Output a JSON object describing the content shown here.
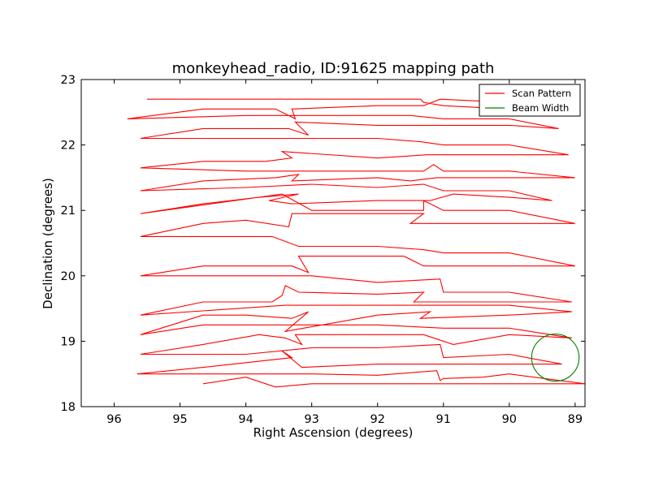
{
  "chart_data": {
    "type": "line",
    "title": "monkeyhead_radio, ID:91625 mapping path",
    "xlabel": "Right Ascension (degrees)",
    "ylabel": "Declination (degrees)",
    "xlim": [
      96.5,
      88.85
    ],
    "ylim": [
      18,
      23
    ],
    "xticks": [
      96,
      95,
      94,
      93,
      92,
      91,
      90,
      89
    ],
    "yticks": [
      18,
      19,
      20,
      21,
      22,
      23
    ],
    "grid": false,
    "legend_position": "top-right",
    "series": [
      {
        "name": "Scan Pattern",
        "color": "#ff0000",
        "points": [
          [
            94.65,
            18.35
          ],
          [
            94.0,
            18.45
          ],
          [
            93.55,
            18.3
          ],
          [
            93.0,
            18.35
          ],
          [
            92.0,
            18.35
          ],
          [
            91.0,
            18.35
          ],
          [
            90.0,
            18.35
          ],
          [
            88.85,
            18.35
          ],
          [
            90.0,
            18.5
          ],
          [
            90.4,
            18.45
          ],
          [
            91.0,
            18.43
          ],
          [
            91.05,
            18.4
          ],
          [
            91.1,
            18.55
          ],
          [
            92.0,
            18.48
          ],
          [
            93.0,
            18.5
          ],
          [
            94.0,
            18.5
          ],
          [
            95.65,
            18.5
          ],
          [
            94.65,
            18.6
          ],
          [
            93.3,
            18.75
          ],
          [
            93.45,
            18.85
          ],
          [
            93.15,
            18.6
          ],
          [
            92.0,
            18.65
          ],
          [
            91.0,
            18.65
          ],
          [
            90.0,
            18.65
          ],
          [
            89.2,
            18.65
          ],
          [
            90.0,
            18.8
          ],
          [
            91.0,
            18.75
          ],
          [
            91.05,
            18.95
          ],
          [
            92.0,
            18.9
          ],
          [
            93.0,
            18.9
          ],
          [
            94.0,
            18.8
          ],
          [
            95.6,
            18.8
          ],
          [
            94.65,
            18.95
          ],
          [
            93.8,
            19.1
          ],
          [
            93.4,
            19.05
          ],
          [
            93.15,
            18.95
          ],
          [
            93.25,
            19.1
          ],
          [
            92.0,
            19.1
          ],
          [
            91.3,
            19.1
          ],
          [
            90.85,
            18.95
          ],
          [
            90.0,
            19.1
          ],
          [
            89.05,
            19.05
          ],
          [
            90.0,
            19.2
          ],
          [
            91.0,
            19.2
          ],
          [
            92.0,
            19.25
          ],
          [
            93.0,
            19.25
          ],
          [
            94.0,
            19.25
          ],
          [
            94.65,
            19.25
          ],
          [
            95.6,
            19.1
          ],
          [
            94.65,
            19.4
          ],
          [
            94.0,
            19.4
          ],
          [
            93.3,
            19.35
          ],
          [
            93.05,
            19.45
          ],
          [
            93.4,
            19.15
          ],
          [
            92.0,
            19.4
          ],
          [
            91.2,
            19.45
          ],
          [
            91.35,
            19.35
          ],
          [
            90.0,
            19.4
          ],
          [
            89.05,
            19.45
          ],
          [
            90.0,
            19.55
          ],
          [
            91.0,
            19.55
          ],
          [
            92.0,
            19.55
          ],
          [
            93.0,
            19.55
          ],
          [
            93.4,
            19.55
          ],
          [
            95.6,
            19.4
          ],
          [
            94.65,
            19.6
          ],
          [
            93.6,
            19.6
          ],
          [
            93.45,
            19.7
          ],
          [
            93.4,
            19.85
          ],
          [
            93.2,
            19.75
          ],
          [
            92.0,
            19.72
          ],
          [
            91.3,
            19.75
          ],
          [
            91.45,
            19.6
          ],
          [
            89.05,
            19.6
          ],
          [
            90.0,
            19.75
          ],
          [
            91.0,
            19.75
          ],
          [
            91.05,
            19.95
          ],
          [
            92.0,
            19.9
          ],
          [
            93.0,
            20.0
          ],
          [
            94.0,
            20.0
          ],
          [
            95.6,
            20.0
          ],
          [
            94.65,
            20.15
          ],
          [
            93.3,
            20.15
          ],
          [
            93.05,
            20.05
          ],
          [
            93.2,
            20.3
          ],
          [
            91.85,
            20.3
          ],
          [
            91.6,
            20.3
          ],
          [
            91.3,
            20.15
          ],
          [
            90.0,
            20.15
          ],
          [
            89.0,
            20.15
          ],
          [
            90.0,
            20.35
          ],
          [
            91.0,
            20.35
          ],
          [
            91.3,
            20.4
          ],
          [
            92.0,
            20.45
          ],
          [
            93.0,
            20.45
          ],
          [
            93.2,
            20.45
          ],
          [
            93.6,
            20.6
          ],
          [
            95.6,
            20.6
          ],
          [
            94.65,
            20.8
          ],
          [
            94.0,
            20.85
          ],
          [
            93.35,
            20.75
          ],
          [
            93.3,
            20.95
          ],
          [
            93.0,
            20.95
          ],
          [
            92.0,
            20.95
          ],
          [
            91.3,
            20.95
          ],
          [
            91.5,
            20.8
          ],
          [
            89.0,
            20.8
          ],
          [
            90.0,
            21.0
          ],
          [
            91.0,
            21.0
          ],
          [
            91.2,
            21.1
          ],
          [
            91.3,
            21.15
          ],
          [
            91.3,
            21.0
          ],
          [
            92.0,
            21.0
          ],
          [
            93.0,
            21.0
          ],
          [
            93.45,
            21.25
          ],
          [
            95.6,
            20.95
          ],
          [
            94.65,
            21.1
          ],
          [
            93.8,
            21.2
          ],
          [
            93.2,
            21.25
          ],
          [
            93.65,
            21.15
          ],
          [
            93.3,
            21.1
          ],
          [
            92.0,
            21.15
          ],
          [
            91.2,
            21.15
          ],
          [
            90.85,
            21.25
          ],
          [
            90.0,
            21.2
          ],
          [
            89.35,
            21.15
          ],
          [
            90.0,
            21.3
          ],
          [
            91.0,
            21.3
          ],
          [
            91.3,
            21.4
          ],
          [
            92.0,
            21.35
          ],
          [
            93.0,
            21.4
          ],
          [
            94.0,
            21.35
          ],
          [
            95.6,
            21.3
          ],
          [
            94.65,
            21.45
          ],
          [
            93.55,
            21.5
          ],
          [
            93.2,
            21.55
          ],
          [
            93.3,
            21.45
          ],
          [
            92.0,
            21.5
          ],
          [
            91.5,
            21.45
          ],
          [
            91.1,
            21.5
          ],
          [
            89.0,
            21.5
          ],
          [
            90.0,
            21.6
          ],
          [
            91.0,
            21.6
          ],
          [
            91.15,
            21.7
          ],
          [
            91.3,
            21.6
          ],
          [
            92.0,
            21.6
          ],
          [
            93.0,
            21.6
          ],
          [
            94.0,
            21.6
          ],
          [
            95.6,
            21.65
          ],
          [
            94.65,
            21.75
          ],
          [
            93.7,
            21.75
          ],
          [
            93.3,
            21.8
          ],
          [
            93.45,
            21.9
          ],
          [
            92.0,
            21.8
          ],
          [
            91.25,
            21.85
          ],
          [
            90.0,
            21.85
          ],
          [
            89.1,
            21.85
          ],
          [
            90.0,
            22.0
          ],
          [
            91.0,
            22.0
          ],
          [
            91.35,
            22.05
          ],
          [
            92.0,
            22.1
          ],
          [
            93.0,
            22.1
          ],
          [
            94.0,
            22.1
          ],
          [
            95.6,
            22.1
          ],
          [
            94.65,
            22.25
          ],
          [
            93.35,
            22.25
          ],
          [
            93.05,
            22.15
          ],
          [
            93.25,
            22.35
          ],
          [
            92.0,
            22.3
          ],
          [
            91.05,
            22.3
          ],
          [
            90.0,
            22.3
          ],
          [
            89.25,
            22.25
          ],
          [
            90.0,
            22.4
          ],
          [
            91.0,
            22.4
          ],
          [
            91.5,
            22.45
          ],
          [
            92.0,
            22.45
          ],
          [
            93.0,
            22.45
          ],
          [
            94.0,
            22.45
          ],
          [
            95.8,
            22.4
          ],
          [
            94.65,
            22.55
          ],
          [
            93.55,
            22.55
          ],
          [
            93.25,
            22.4
          ],
          [
            93.3,
            22.55
          ],
          [
            92.0,
            22.6
          ],
          [
            91.3,
            22.6
          ],
          [
            91.05,
            22.7
          ],
          [
            90.0,
            22.65
          ],
          [
            89.4,
            22.7
          ],
          [
            90.0,
            22.55
          ],
          [
            91.0,
            22.6
          ],
          [
            91.3,
            22.65
          ],
          [
            91.35,
            22.7
          ],
          [
            92.0,
            22.7
          ],
          [
            93.0,
            22.7
          ],
          [
            94.0,
            22.7
          ],
          [
            95.5,
            22.7
          ]
        ]
      },
      {
        "name": "Beam Width",
        "color": "#007f00",
        "shape": "circle",
        "center": [
          89.3,
          18.75
        ],
        "radius_deg": 0.36
      }
    ]
  }
}
